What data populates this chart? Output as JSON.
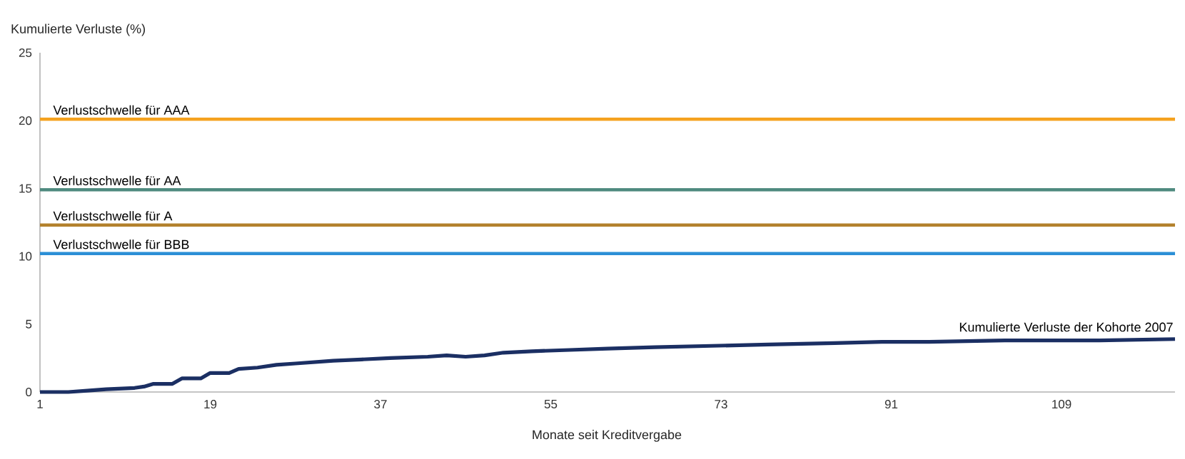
{
  "chart_data": {
    "type": "line",
    "xlabel": "Monate seit Kreditvergabe",
    "ylabel": "Kumulierte Verluste (%)",
    "xlim": [
      1,
      121
    ],
    "xticks": [
      1,
      19,
      37,
      55,
      73,
      91,
      109
    ],
    "ylim": [
      0,
      25
    ],
    "yticks": [
      0,
      5,
      10,
      15,
      20,
      25
    ],
    "x": [
      1,
      4,
      6,
      8,
      11,
      12,
      13,
      15,
      16,
      18,
      19,
      21,
      22,
      24,
      26,
      28,
      30,
      32,
      35,
      38,
      42,
      44,
      46,
      48,
      50,
      53,
      57,
      61,
      66,
      72,
      78,
      85,
      90,
      95,
      103,
      113,
      121
    ],
    "series": [
      {
        "name": "Kumulierte Verluste der Kohorte 2007",
        "color": "#1b2f63",
        "values": [
          0,
          0,
          0.1,
          0.2,
          0.3,
          0.4,
          0.6,
          0.6,
          1.0,
          1.0,
          1.4,
          1.4,
          1.7,
          1.8,
          2.0,
          2.1,
          2.2,
          2.3,
          2.4,
          2.5,
          2.6,
          2.7,
          2.6,
          2.7,
          2.9,
          3.0,
          3.1,
          3.2,
          3.3,
          3.4,
          3.5,
          3.6,
          3.7,
          3.7,
          3.8,
          3.8,
          3.9
        ]
      }
    ],
    "ref_lines": [
      {
        "axis": "y",
        "value": 20.1,
        "label": "Verlustschwelle für AAA",
        "color": "#f5a21f"
      },
      {
        "axis": "y",
        "value": 14.9,
        "label": "Verlustschwelle für AA",
        "color": "#4f8a7f"
      },
      {
        "axis": "y",
        "value": 12.3,
        "label": "Verlustschwelle für A",
        "color": "#b3812c"
      },
      {
        "axis": "y",
        "value": 10.2,
        "label": "Verlustschwelle für BBB",
        "color": "#2b8fd6"
      }
    ],
    "grid": false
  }
}
